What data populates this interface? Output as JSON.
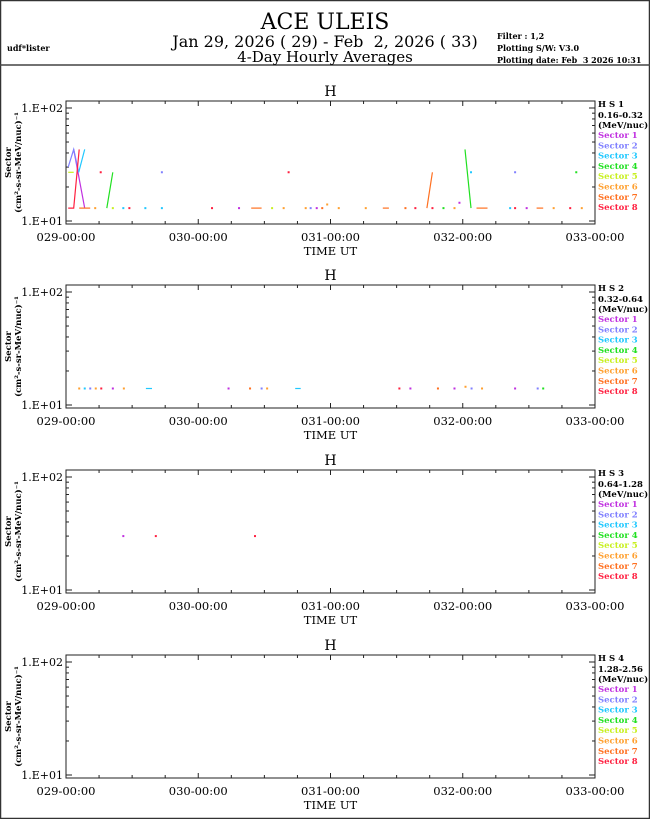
{
  "header": {
    "title": "ACE ULEIS",
    "date_range": "Jan 29, 2026 ( 29) - Feb  2, 2026 ( 33)",
    "subtitle": "4-Day Hourly Averages",
    "user": "udf*lister",
    "filter": "Filter : 1,2",
    "software": "Plotting S/W: V3.0",
    "plot_date": "Plotting date: Feb  3 2026 10:31"
  },
  "colors": {
    "sectors": [
      "#c030e0",
      "#8080ff",
      "#20c8ff",
      "#20e020",
      "#c8f020",
      "#ffa030",
      "#ff7020",
      "#ff2040"
    ]
  },
  "chart_data": [
    {
      "type": "line",
      "title": "H",
      "channel": "H S 1",
      "energy": "0.16-0.32",
      "units": "(MeV/nuc)",
      "ylabel": [
        "Sector",
        "(cm²-s-sr-MeV/nuc)⁻¹"
      ],
      "xlabel": "TIME UT",
      "yscale": "log",
      "ylim": [
        10,
        100
      ],
      "ytick_labels": [
        "1.E+02",
        "1.E+01"
      ],
      "xlim_hours": [
        0,
        96
      ],
      "xtick_labels": [
        "029-00:00",
        "030-00:00",
        "031-00:00",
        "032-00:00",
        "033-00:00"
      ],
      "legend": [
        "Sector 1",
        "Sector 2",
        "Sector 3",
        "Sector 4",
        "Sector 5",
        "Sector 6",
        "Sector 7",
        "Sector 8"
      ],
      "series": [
        {
          "name": "Sector 1",
          "segments": [
            [
              [
                1.4,
                43
              ],
              [
                3.4,
                13
              ]
            ],
            [
              [
                31.4,
                13
              ]
            ],
            [
              [
                45.5,
                13
              ]
            ],
            [
              [
                71.4,
                14.5
              ]
            ],
            [
              [
                83.6,
                13
              ]
            ]
          ]
        },
        {
          "name": "Sector 2",
          "segments": [
            [
              [
                0.4,
                30
              ],
              [
                1.4,
                43
              ],
              [
                2.3,
                27
              ]
            ],
            [
              [
                17.4,
                27
              ]
            ],
            [
              [
                44.4,
                13
              ]
            ],
            [
              [
                81.5,
                27
              ]
            ]
          ]
        },
        {
          "name": "Sector 3",
          "segments": [
            [
              [
                2.3,
                27
              ],
              [
                3.4,
                43
              ]
            ],
            [
              [
                10.4,
                13
              ]
            ],
            [
              [
                14.4,
                13
              ]
            ],
            [
              [
                17.4,
                13
              ]
            ],
            [
              [
                73.5,
                27
              ]
            ],
            [
              [
                80.6,
                13
              ]
            ]
          ]
        },
        {
          "name": "Sector 4",
          "segments": [
            [
              [
                7.4,
                13
              ],
              [
                8.5,
                27
              ]
            ],
            [
              [
                72.4,
                43
              ],
              [
                73.5,
                13
              ]
            ],
            [
              [
                68.5,
                13
              ]
            ],
            [
              [
                92.6,
                27
              ]
            ]
          ]
        },
        {
          "name": "Sector 5",
          "segments": [
            [
              [
                0.4,
                27
              ],
              [
                1.4,
                27
              ]
            ],
            [
              [
                8.5,
                13
              ]
            ],
            [
              [
                37.4,
                13
              ]
            ]
          ]
        },
        {
          "name": "Sector 6",
          "segments": [
            [
              [
                5.3,
                13
              ]
            ],
            [
              [
                39.5,
                13
              ]
            ],
            [
              [
                43.5,
                13
              ]
            ],
            [
              [
                47.4,
                14
              ]
            ],
            [
              [
                49.5,
                13
              ]
            ],
            [
              [
                54.4,
                13
              ]
            ],
            [
              [
                70.5,
                13
              ]
            ],
            [
              [
                88.5,
                13
              ]
            ],
            [
              [
                93.6,
                13
              ]
            ]
          ]
        },
        {
          "name": "Sector 7",
          "segments": [
            [
              [
                2.4,
                13
              ],
              [
                4.4,
                13
              ]
            ],
            [
              [
                33.6,
                13
              ],
              [
                35.5,
                13
              ]
            ],
            [
              [
                57.5,
                13
              ],
              [
                58.6,
                13
              ]
            ],
            [
              [
                65.5,
                13
              ],
              [
                66.5,
                27
              ]
            ],
            [
              [
                74.5,
                13
              ],
              [
                76.5,
                13
              ]
            ],
            [
              [
                85.4,
                13
              ],
              [
                86.6,
                13
              ]
            ],
            [
              [
                46.5,
                13
              ]
            ],
            [
              [
                61.6,
                13
              ]
            ]
          ]
        },
        {
          "name": "Sector 8",
          "segments": [
            [
              [
                0.4,
                13
              ],
              [
                1.4,
                13
              ],
              [
                2.4,
                43
              ]
            ],
            [
              [
                6.3,
                27
              ]
            ],
            [
              [
                11.5,
                13
              ]
            ],
            [
              [
                26.5,
                13
              ]
            ],
            [
              [
                40.4,
                27
              ]
            ],
            [
              [
                63.4,
                13
              ]
            ],
            [
              [
                66.5,
                13
              ]
            ],
            [
              [
                81.5,
                13
              ]
            ],
            [
              [
                91.5,
                13
              ]
            ]
          ]
        }
      ]
    },
    {
      "type": "line",
      "title": "H",
      "channel": "H S 2",
      "energy": "0.32-0.64",
      "units": "(MeV/nuc)",
      "ylabel": [
        "Sector",
        "(cm²-s-sr-MeV/nuc)⁻¹"
      ],
      "xlabel": "TIME UT",
      "yscale": "log",
      "ylim": [
        10,
        100
      ],
      "ytick_labels": [
        "1.E+02",
        "1.E+01"
      ],
      "xlim_hours": [
        0,
        96
      ],
      "xtick_labels": [
        "029-00:00",
        "030-00:00",
        "031-00:00",
        "032-00:00",
        "033-00:00"
      ],
      "legend": [
        "Sector 1",
        "Sector 2",
        "Sector 3",
        "Sector 4",
        "Sector 5",
        "Sector 6",
        "Sector 7",
        "Sector 8"
      ],
      "series": [
        {
          "name": "Sector 1",
          "segments": [
            [
              [
                8.5,
                14
              ]
            ],
            [
              [
                29.5,
                14
              ]
            ],
            [
              [
                62.5,
                14
              ]
            ],
            [
              [
                70.5,
                14
              ]
            ],
            [
              [
                81.5,
                14
              ]
            ]
          ]
        },
        {
          "name": "Sector 2",
          "segments": [
            [
              [
                4.4,
                14
              ]
            ],
            [
              [
                35.5,
                14
              ]
            ],
            [
              [
                73.6,
                14
              ]
            ],
            [
              [
                85.6,
                14
              ]
            ]
          ]
        },
        {
          "name": "Sector 3",
          "segments": [
            [
              [
                3.4,
                14
              ]
            ],
            [
              [
                14.5,
                14
              ],
              [
                15.6,
                14
              ]
            ],
            [
              [
                41.6,
                14
              ],
              [
                42.6,
                14
              ]
            ]
          ]
        },
        {
          "name": "Sector 4",
          "segments": [
            [
              [
                86.6,
                14
              ]
            ]
          ]
        },
        {
          "name": "Sector 5",
          "segments": []
        },
        {
          "name": "Sector 6",
          "segments": [
            [
              [
                2.4,
                14
              ]
            ],
            [
              [
                5.4,
                14
              ]
            ],
            [
              [
                10.5,
                14
              ]
            ],
            [
              [
                36.5,
                14
              ]
            ],
            [
              [
                72.5,
                14.5
              ]
            ],
            [
              [
                75.5,
                14
              ]
            ]
          ]
        },
        {
          "name": "Sector 7",
          "segments": [
            [
              [
                33.4,
                14
              ]
            ],
            [
              [
                67.5,
                14
              ]
            ]
          ]
        },
        {
          "name": "Sector 8",
          "segments": [
            [
              [
                6.4,
                14
              ]
            ],
            [
              [
                60.5,
                14
              ]
            ]
          ]
        }
      ]
    },
    {
      "type": "line",
      "title": "H",
      "channel": "H S 3",
      "energy": "0.64-1.28",
      "units": "(MeV/nuc)",
      "ylabel": [
        "Sector",
        "(cm²-s-sr-MeV/nuc)⁻¹"
      ],
      "xlabel": "TIME UT",
      "yscale": "log",
      "ylim": [
        10,
        100
      ],
      "ytick_labels": [
        "1.E+02",
        "1.E+01"
      ],
      "xlim_hours": [
        0,
        96
      ],
      "xtick_labels": [
        "029-00:00",
        "030-00:00",
        "031-00:00",
        "032-00:00",
        "033-00:00"
      ],
      "legend": [
        "Sector 1",
        "Sector 2",
        "Sector 3",
        "Sector 4",
        "Sector 5",
        "Sector 6",
        "Sector 7",
        "Sector 8"
      ],
      "series": [
        {
          "name": "Sector 1",
          "segments": [
            [
              [
                10.4,
                30
              ]
            ]
          ]
        },
        {
          "name": "Sector 2",
          "segments": []
        },
        {
          "name": "Sector 3",
          "segments": []
        },
        {
          "name": "Sector 4",
          "segments": []
        },
        {
          "name": "Sector 5",
          "segments": []
        },
        {
          "name": "Sector 6",
          "segments": []
        },
        {
          "name": "Sector 7",
          "segments": []
        },
        {
          "name": "Sector 8",
          "segments": [
            [
              [
                16.3,
                30
              ]
            ],
            [
              [
                34.3,
                30
              ]
            ]
          ]
        }
      ]
    },
    {
      "type": "line",
      "title": "H",
      "channel": "H S 4",
      "energy": "1.28-2.56",
      "units": "(MeV/nuc)",
      "ylabel": [
        "Sector",
        "(cm²-s-sr-MeV/nuc)⁻¹"
      ],
      "xlabel": "TIME UT",
      "yscale": "log",
      "ylim": [
        10,
        100
      ],
      "ytick_labels": [
        "1.E+02",
        "1.E+01"
      ],
      "xlim_hours": [
        0,
        96
      ],
      "xtick_labels": [
        "029-00:00",
        "030-00:00",
        "031-00:00",
        "032-00:00",
        "033-00:00"
      ],
      "legend": [
        "Sector 1",
        "Sector 2",
        "Sector 3",
        "Sector 4",
        "Sector 5",
        "Sector 6",
        "Sector 7",
        "Sector 8"
      ],
      "series": [
        {
          "name": "Sector 1",
          "segments": []
        },
        {
          "name": "Sector 2",
          "segments": []
        },
        {
          "name": "Sector 3",
          "segments": []
        },
        {
          "name": "Sector 4",
          "segments": []
        },
        {
          "name": "Sector 5",
          "segments": []
        },
        {
          "name": "Sector 6",
          "segments": []
        },
        {
          "name": "Sector 7",
          "segments": []
        },
        {
          "name": "Sector 8",
          "segments": []
        }
      ]
    }
  ]
}
